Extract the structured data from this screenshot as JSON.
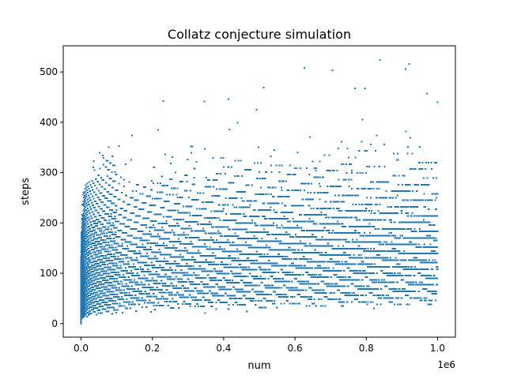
{
  "chart_data": {
    "type": "scatter",
    "title": "Collatz conjecture simulation",
    "xlabel": "num",
    "ylabel": "steps",
    "x_offset_label": "1e6",
    "xlim": [
      -50000,
      1050000
    ],
    "ylim": [
      -27,
      552
    ],
    "xticks": [
      0,
      200000,
      400000,
      600000,
      800000,
      1000000
    ],
    "xtick_labels": [
      "0.0",
      "0.2",
      "0.4",
      "0.6",
      "0.8",
      "1.0"
    ],
    "yticks": [
      0,
      100,
      200,
      300,
      400,
      500
    ],
    "ytick_labels": [
      "0",
      "100",
      "200",
      "300",
      "400",
      "500"
    ],
    "grid": false,
    "legend": "none",
    "color": "#1f77b4",
    "series": [
      {
        "x_range": [
          1,
          1000000
        ],
        "y_range": [
          0,
          524
        ],
        "points": [
          [
            837799,
            524
          ],
          [
            626331,
            508
          ],
          [
            704623,
            503
          ],
          [
            910107,
            506
          ],
          [
            511935,
            469
          ],
          [
            230631,
            442
          ],
          [
            345947,
            441
          ],
          [
            413383,
            446
          ],
          [
            767903,
            467
          ],
          [
            796095,
            467
          ],
          [
            920575,
            516
          ],
          [
            970599,
            457
          ],
          [
            1000000,
            440
          ],
          [
            216367,
            385
          ],
          [
            142587,
            374
          ],
          [
            106239,
            353
          ],
          [
            77031,
            350
          ],
          [
            52527,
            339
          ],
          [
            35655,
            323
          ],
          [
            23529,
            281
          ],
          [
            13255,
            275
          ],
          [
            10971,
            267
          ],
          [
            6171,
            261
          ],
          [
            2463,
            208
          ],
          [
            27,
            111
          ],
          [
            1,
            0
          ]
        ]
      }
    ]
  }
}
